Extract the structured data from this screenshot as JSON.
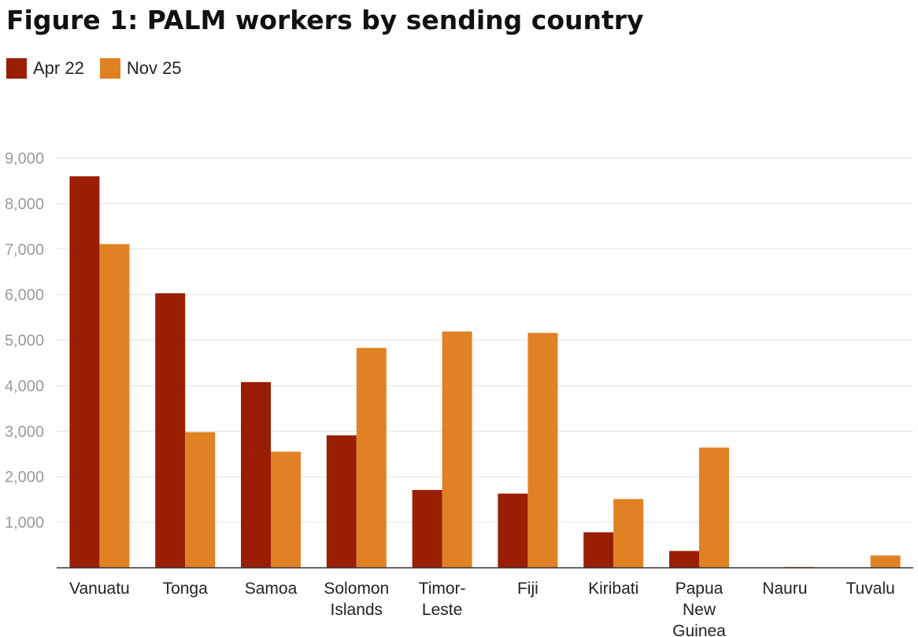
{
  "chart_data": {
    "type": "bar",
    "title": "Figure 1: PALM workers by sending country",
    "xlabel": "",
    "ylabel": "",
    "ylim": [
      0,
      9000
    ],
    "yticks": [
      "1,000",
      "2,000",
      "3,000",
      "4,000",
      "5,000",
      "6,000",
      "7,000",
      "8,000",
      "9,000"
    ],
    "grid": true,
    "legend_position": "top-left",
    "categories": [
      [
        "Vanuatu"
      ],
      [
        "Tonga"
      ],
      [
        "Samoa"
      ],
      [
        "Solomon",
        "Islands"
      ],
      [
        "Timor-",
        "Leste"
      ],
      [
        "Fiji"
      ],
      [
        "Kiribati"
      ],
      [
        "Papua",
        "New",
        "Guinea"
      ],
      [
        "Nauru"
      ],
      [
        "Tuvalu"
      ]
    ],
    "series": [
      {
        "name": "Apr 22",
        "color": "#9a1e04",
        "values": [
          8600,
          6030,
          4080,
          2910,
          1710,
          1630,
          780,
          370,
          0,
          0
        ]
      },
      {
        "name": "Nov 25",
        "color": "#e08224",
        "values": [
          7110,
          2980,
          2550,
          4830,
          5190,
          5160,
          1510,
          2640,
          20,
          270
        ]
      }
    ]
  }
}
